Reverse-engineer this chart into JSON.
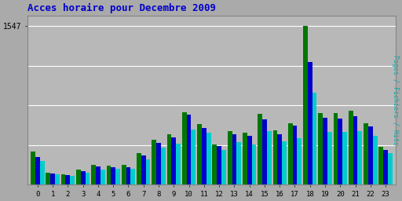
{
  "title": "Acces horaire pour Decembre 2009",
  "ylabel_right": "Pages / Fichiers / Hits",
  "xlabel_labels": [
    "0",
    "1",
    "2",
    "3",
    "4",
    "5",
    "6",
    "7",
    "8",
    "9",
    "10",
    "11",
    "12",
    "13",
    "14",
    "15",
    "16",
    "17",
    "18",
    "19",
    "20",
    "21",
    "22",
    "23"
  ],
  "ytick_label": "1547",
  "bg_color": "#aaaaaa",
  "plot_bg_color": "#b8b8b8",
  "title_color": "#0000cc",
  "title_fontsize": 9,
  "bar_width": 0.3,
  "colors": {
    "pages": "#007700",
    "fichiers": "#0000cc",
    "hits": "#00cccc"
  },
  "pages": [
    320,
    120,
    100,
    150,
    190,
    185,
    195,
    310,
    440,
    490,
    710,
    590,
    390,
    520,
    510,
    690,
    530,
    600,
    1547,
    700,
    695,
    720,
    600,
    370
  ],
  "fichiers": [
    270,
    110,
    90,
    135,
    175,
    170,
    170,
    285,
    410,
    460,
    680,
    555,
    375,
    490,
    475,
    635,
    495,
    575,
    1200,
    650,
    645,
    670,
    565,
    340
  ],
  "hits": [
    230,
    100,
    82,
    120,
    150,
    155,
    155,
    250,
    365,
    400,
    540,
    505,
    335,
    415,
    395,
    525,
    425,
    455,
    900,
    515,
    515,
    525,
    475,
    305
  ]
}
